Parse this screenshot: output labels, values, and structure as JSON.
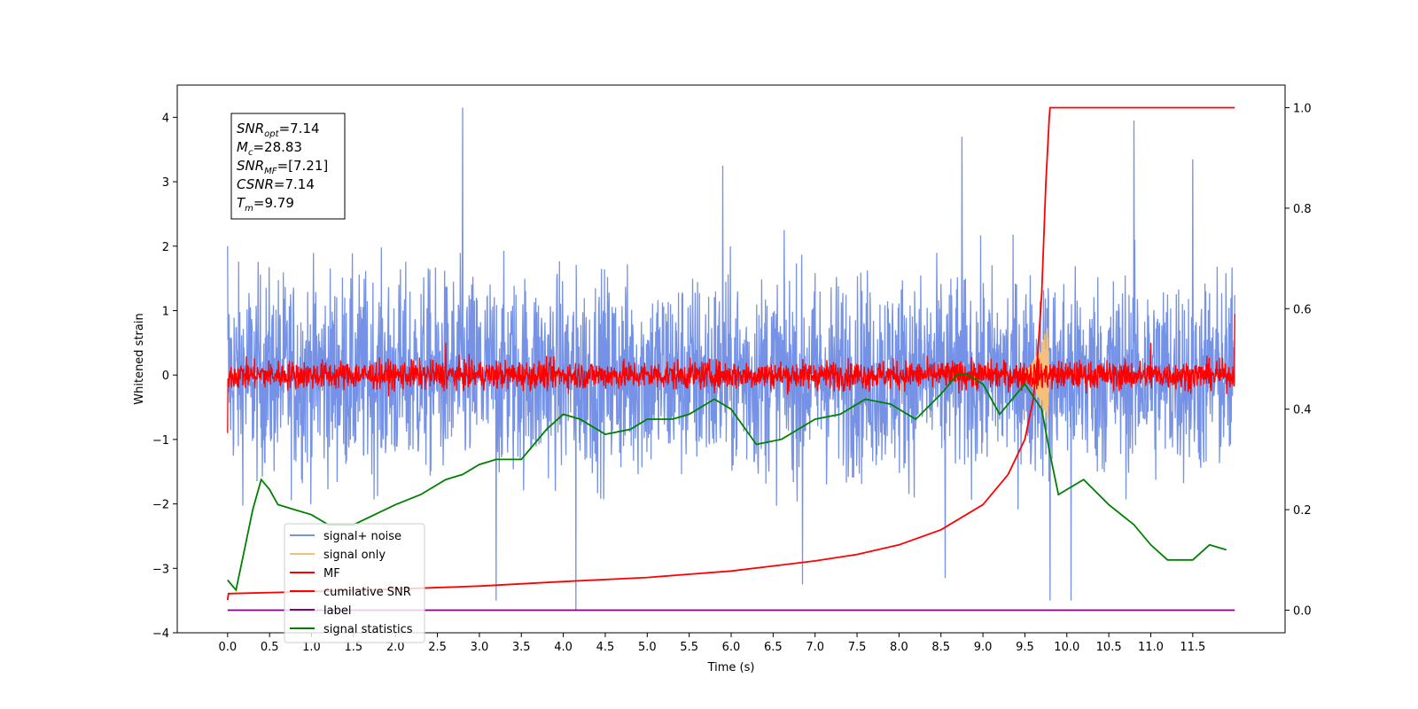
{
  "chart_data": {
    "type": "line",
    "title": "",
    "xlabel": "Time (s)",
    "ylabel": "Whitened strain",
    "xlim": [
      -0.6,
      12.6
    ],
    "ylim": [
      -4.0,
      4.5
    ],
    "y2lim": [
      -0.045,
      1.045
    ],
    "xticks": [
      "0.0",
      "0.5",
      "1.0",
      "1.5",
      "2.0",
      "2.5",
      "3.0",
      "3.5",
      "4.0",
      "4.5",
      "5.0",
      "5.5",
      "6.0",
      "6.5",
      "7.0",
      "7.5",
      "8.0",
      "8.5",
      "9.0",
      "9.5",
      "10.0",
      "10.5",
      "11.0",
      "11.5"
    ],
    "yticks": [
      "−4",
      "−3",
      "−2",
      "−1",
      "0",
      "1",
      "2",
      "3",
      "4"
    ],
    "y2ticks": [
      "0.0",
      "0.2",
      "0.4",
      "0.6",
      "0.8",
      "1.0"
    ],
    "grid": false,
    "legend_position": "lower-left",
    "annotation": {
      "lines": [
        {
          "base": "SNR",
          "sub": "opt",
          "value": "=7.14"
        },
        {
          "base": "M",
          "sub": "c",
          "value": "=28.83"
        },
        {
          "base": "SNR",
          "sub": "MF",
          "value": "=[7.21]"
        },
        {
          "base": "CSNR",
          "sub": "",
          "value": "=7.14"
        },
        {
          "base": "T",
          "sub": "m",
          "value": "=9.79"
        }
      ]
    },
    "series": [
      {
        "name": "signal+ noise",
        "color": "#7592e6",
        "axis": "left",
        "kind": "noise",
        "x_range": [
          0,
          12
        ],
        "band": [
          -1.4,
          1.4
        ],
        "peaks_up": [
          [
            0.0,
            2.0
          ],
          [
            2.8,
            4.15
          ],
          [
            8.75,
            3.7
          ],
          [
            10.8,
            3.95
          ],
          [
            11.5,
            3.35
          ],
          [
            5.9,
            3.25
          ]
        ],
        "peaks_down": [
          [
            3.2,
            -3.5
          ],
          [
            4.15,
            -3.65
          ],
          [
            9.8,
            -3.5
          ],
          [
            10.05,
            -3.5
          ],
          [
            6.85,
            -3.25
          ],
          [
            8.55,
            -3.15
          ]
        ]
      },
      {
        "name": "signal only",
        "color": "#f5c07a",
        "axis": "left",
        "kind": "chirp",
        "x_range": [
          9.4,
          9.8
        ],
        "amplitude": 0.9
      },
      {
        "name": "MF",
        "color": "#ff0000",
        "axis": "left",
        "kind": "noise",
        "x_range": [
          0,
          12
        ],
        "band": [
          -0.2,
          0.2
        ],
        "peaks_up": [
          [
            0.0,
            1.0
          ],
          [
            12.0,
            0.95
          ],
          [
            2.6,
            0.5
          ],
          [
            11.0,
            0.5
          ]
        ],
        "peaks_down": [
          [
            0.0,
            -0.9
          ]
        ]
      },
      {
        "name": "cumilative SNR",
        "color": "#ff0000",
        "axis": "right",
        "x": [
          0.0,
          0.01,
          1.0,
          2.0,
          3.0,
          4.0,
          5.0,
          6.0,
          7.0,
          7.5,
          8.0,
          8.5,
          9.0,
          9.3,
          9.5,
          9.6,
          9.65,
          9.7,
          9.75,
          9.79,
          9.8,
          10.0,
          11.0,
          12.0
        ],
        "y": [
          0.02,
          0.033,
          0.037,
          0.042,
          0.048,
          0.057,
          0.065,
          0.078,
          0.098,
          0.111,
          0.13,
          0.16,
          0.21,
          0.27,
          0.34,
          0.42,
          0.5,
          0.63,
          0.85,
          0.98,
          1.0,
          1.0,
          1.0,
          1.0
        ]
      },
      {
        "name": "label",
        "color": "#800080",
        "axis": "right",
        "x": [
          0.0,
          12.0
        ],
        "y": [
          0.0,
          0.0
        ]
      },
      {
        "name": "signal statistics",
        "color": "#008000",
        "axis": "right",
        "x": [
          0.0,
          0.1,
          0.2,
          0.3,
          0.4,
          0.5,
          0.6,
          0.8,
          1.0,
          1.2,
          1.5,
          2.0,
          2.3,
          2.6,
          2.8,
          3.0,
          3.2,
          3.5,
          3.8,
          4.0,
          4.2,
          4.5,
          4.8,
          5.0,
          5.3,
          5.5,
          5.8,
          6.0,
          6.3,
          6.6,
          7.0,
          7.3,
          7.6,
          7.9,
          8.2,
          8.5,
          8.7,
          8.8,
          9.0,
          9.2,
          9.5,
          9.7,
          9.8,
          9.9,
          10.0,
          10.2,
          10.5,
          10.8,
          11.0,
          11.2,
          11.5,
          11.7,
          11.9
        ],
        "y": [
          0.06,
          0.04,
          0.12,
          0.2,
          0.26,
          0.24,
          0.21,
          0.2,
          0.19,
          0.17,
          0.17,
          0.21,
          0.23,
          0.26,
          0.27,
          0.29,
          0.3,
          0.3,
          0.36,
          0.39,
          0.38,
          0.35,
          0.36,
          0.38,
          0.38,
          0.39,
          0.42,
          0.4,
          0.33,
          0.34,
          0.38,
          0.39,
          0.42,
          0.41,
          0.38,
          0.43,
          0.47,
          0.47,
          0.45,
          0.39,
          0.45,
          0.4,
          0.31,
          0.23,
          0.24,
          0.26,
          0.21,
          0.17,
          0.13,
          0.1,
          0.1,
          0.13,
          0.12
        ]
      }
    ]
  }
}
